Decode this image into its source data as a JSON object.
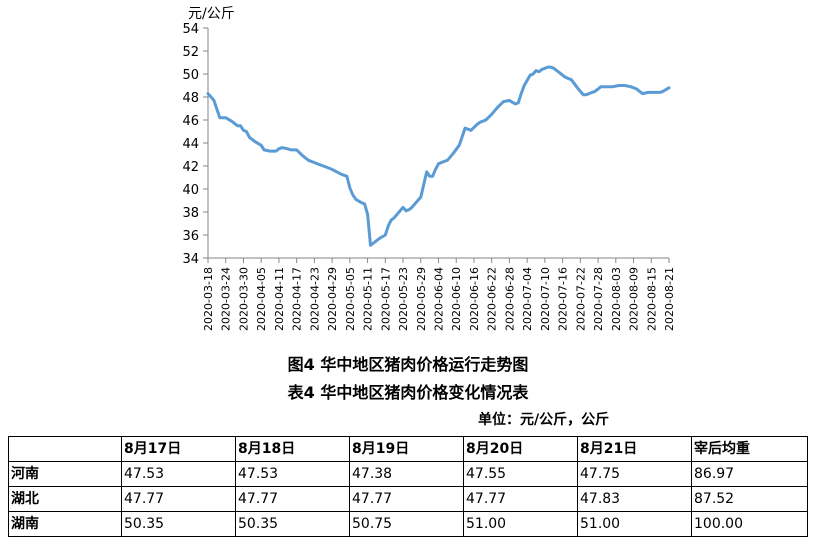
{
  "chart_data": {
    "type": "line",
    "ylabel": "元/公斤",
    "ylim": [
      34,
      54
    ],
    "yticks": [
      34,
      36,
      38,
      40,
      42,
      44,
      46,
      48,
      50,
      52,
      54
    ],
    "xlim": [
      "2020-03-18",
      "2020-08-21"
    ],
    "xtick_labels": [
      "2020-03-18",
      "2020-03-24",
      "2020-03-30",
      "2020-04-05",
      "2020-04-11",
      "2020-04-17",
      "2020-04-23",
      "2020-04-29",
      "2020-05-05",
      "2020-05-11",
      "2020-05-17",
      "2020-05-23",
      "2020-05-29",
      "2020-06-04",
      "2020-06-10",
      "2020-06-16",
      "2020-06-22",
      "2020-06-28",
      "2020-07-04",
      "2020-07-10",
      "2020-07-16",
      "2020-07-22",
      "2020-07-28",
      "2020-08-03",
      "2020-08-09",
      "2020-08-15",
      "2020-08-21"
    ],
    "grid": false,
    "color": "#5b9bd5",
    "series": [
      {
        "x": [
          "2020-03-18",
          "2020-03-19",
          "2020-03-20",
          "2020-03-22",
          "2020-03-23",
          "2020-03-24",
          "2020-03-26",
          "2020-03-28",
          "2020-03-29",
          "2020-03-30",
          "2020-03-31",
          "2020-04-01",
          "2020-04-03",
          "2020-04-05",
          "2020-04-06",
          "2020-04-08",
          "2020-04-10",
          "2020-04-11",
          "2020-04-12",
          "2020-04-14",
          "2020-04-15",
          "2020-04-17",
          "2020-04-19",
          "2020-04-21",
          "2020-04-23",
          "2020-04-26",
          "2020-04-29",
          "2020-05-02",
          "2020-05-04",
          "2020-05-05",
          "2020-05-06",
          "2020-05-07",
          "2020-05-09",
          "2020-05-10",
          "2020-05-11",
          "2020-05-12",
          "2020-05-13",
          "2020-05-14",
          "2020-05-15",
          "2020-05-17",
          "2020-05-18",
          "2020-05-19",
          "2020-05-20",
          "2020-05-21",
          "2020-05-23",
          "2020-05-24",
          "2020-05-25",
          "2020-05-26",
          "2020-05-27",
          "2020-05-28",
          "2020-05-29",
          "2020-05-31",
          "2020-06-01",
          "2020-06-02",
          "2020-06-03",
          "2020-06-04",
          "2020-06-06",
          "2020-06-07",
          "2020-06-09",
          "2020-06-11",
          "2020-06-13",
          "2020-06-15",
          "2020-06-17",
          "2020-06-18",
          "2020-06-19",
          "2020-06-20",
          "2020-06-22",
          "2020-06-23",
          "2020-06-24",
          "2020-06-26",
          "2020-06-28",
          "2020-06-30",
          "2020-07-01",
          "2020-07-02",
          "2020-07-03",
          "2020-07-05",
          "2020-07-06",
          "2020-07-07",
          "2020-07-08",
          "2020-07-09",
          "2020-07-10",
          "2020-07-11",
          "2020-07-12",
          "2020-07-13",
          "2020-07-14",
          "2020-07-15",
          "2020-07-16",
          "2020-07-17",
          "2020-07-19",
          "2020-07-21",
          "2020-07-22",
          "2020-07-23",
          "2020-07-24",
          "2020-07-26",
          "2020-07-27",
          "2020-07-29",
          "2020-07-31",
          "2020-08-02",
          "2020-08-04",
          "2020-08-06",
          "2020-08-08",
          "2020-08-10",
          "2020-08-12",
          "2020-08-14",
          "2020-08-17",
          "2020-08-18",
          "2020-08-19",
          "2020-08-21"
        ],
        "y": [
          48.3,
          48.0,
          47.7,
          46.2,
          46.2,
          46.2,
          45.9,
          45.5,
          45.5,
          45.1,
          45.0,
          44.5,
          44.1,
          43.8,
          43.4,
          43.3,
          43.3,
          43.5,
          43.6,
          43.5,
          43.4,
          43.4,
          42.9,
          42.5,
          42.3,
          42.0,
          41.7,
          41.3,
          41.1,
          40.1,
          39.5,
          39.1,
          38.8,
          38.7,
          37.8,
          35.1,
          35.3,
          35.5,
          35.7,
          36.0,
          36.8,
          37.3,
          37.5,
          37.8,
          38.4,
          38.1,
          38.2,
          38.4,
          38.7,
          39.0,
          39.3,
          41.5,
          41.1,
          41.1,
          41.7,
          42.2,
          42.4,
          42.5,
          43.1,
          43.8,
          45.3,
          45.1,
          45.6,
          45.8,
          45.9,
          46.0,
          46.5,
          46.8,
          47.1,
          47.6,
          47.7,
          47.4,
          47.5,
          48.3,
          49.0,
          49.9,
          50.0,
          50.3,
          50.2,
          50.4,
          50.5,
          50.6,
          50.6,
          50.5,
          50.3,
          50.1,
          49.9,
          49.7,
          49.5,
          48.8,
          48.5,
          48.2,
          48.2,
          48.4,
          48.5,
          48.9,
          48.9,
          48.9,
          49.0,
          49.0,
          48.9,
          48.7,
          48.3,
          48.4,
          48.4,
          48.4,
          48.5,
          48.8
        ]
      }
    ]
  },
  "figure_caption": "图4 华中地区猪肉价格运行走势图",
  "table": {
    "title": "表4 华中地区猪肉价格变化情况表",
    "unit": "单位：元/公斤，公斤",
    "columns": [
      "",
      "8月17日",
      "8月18日",
      "8月19日",
      "8月20日",
      "8月21日",
      "宰后均重"
    ],
    "rows": [
      {
        "region": "河南",
        "values": [
          "47.53",
          "47.53",
          "47.38",
          "47.55",
          "47.75",
          "86.97"
        ]
      },
      {
        "region": "湖北",
        "values": [
          "47.77",
          "47.77",
          "47.77",
          "47.77",
          "47.83",
          "87.52"
        ]
      },
      {
        "region": "湖南",
        "values": [
          "50.35",
          "50.35",
          "50.75",
          "51.00",
          "51.00",
          "100.00"
        ]
      }
    ]
  }
}
